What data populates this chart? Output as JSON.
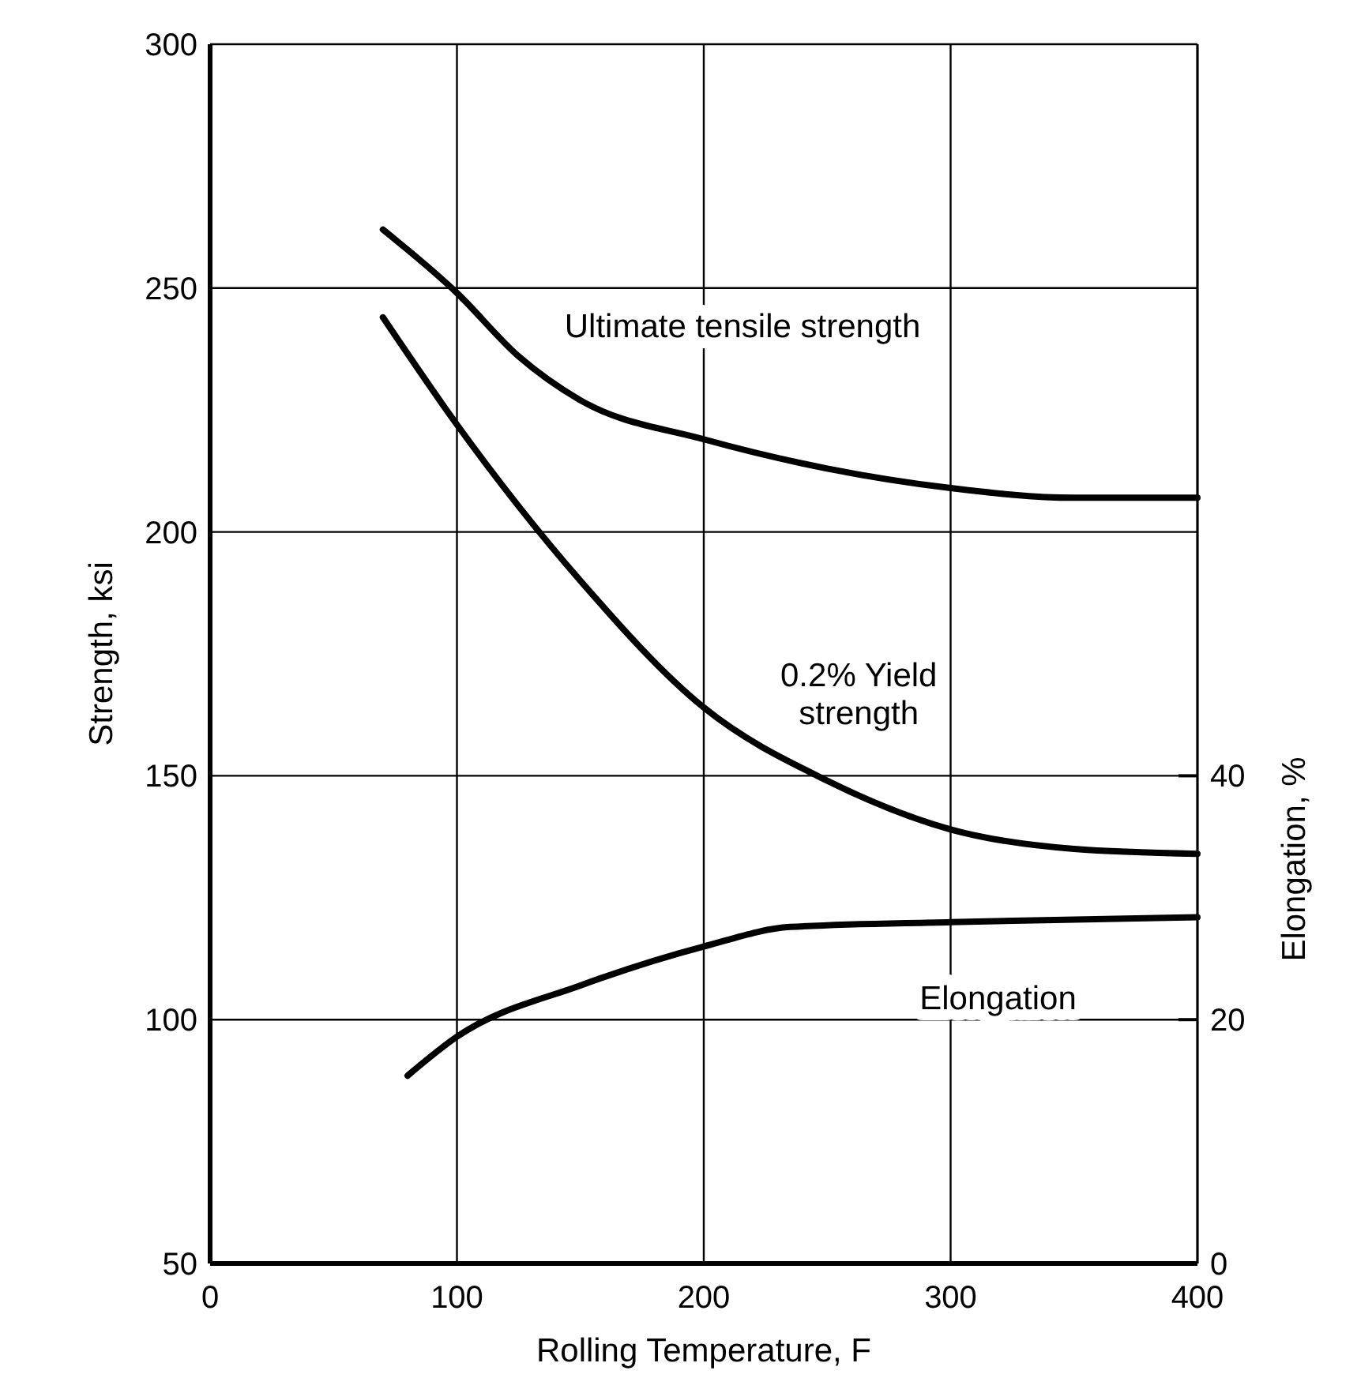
{
  "chart_data": {
    "type": "line",
    "xlabel": "Rolling Temperature, F",
    "ylabel": "Strength, ksi",
    "y2label": "Elongation, %",
    "xlim": [
      0,
      400
    ],
    "xticks": [
      0,
      100,
      200,
      300,
      400
    ],
    "ylim": [
      50,
      300
    ],
    "yticks": [
      50,
      100,
      150,
      200,
      250,
      300
    ],
    "y2lim": [
      0,
      100
    ],
    "y2ticks": [
      0,
      20,
      40
    ],
    "grid": true,
    "line_style": "solid",
    "series": [
      {
        "name": "Ultimate tensile strength",
        "color": "#000000",
        "x": [
          70,
          100,
          125,
          150,
          200,
          250,
          300,
          350,
          400
        ],
        "values": [
          262,
          249,
          236,
          227,
          219,
          213,
          209,
          207,
          207
        ]
      },
      {
        "name": "0.2% Yield strength",
        "color": "#000000",
        "x": [
          70,
          100,
          150,
          200,
          250,
          300,
          350,
          400
        ],
        "values": [
          244,
          222,
          190,
          164,
          149,
          139,
          135,
          134
        ]
      },
      {
        "name": "Elongation",
        "color": "#000000",
        "axis": "y2",
        "x": [
          80,
          100,
          150,
          200,
          235,
          300,
          400
        ],
        "values": [
          15.4,
          18.6,
          22.8,
          26,
          27.6,
          28,
          28.4
        ]
      }
    ]
  }
}
